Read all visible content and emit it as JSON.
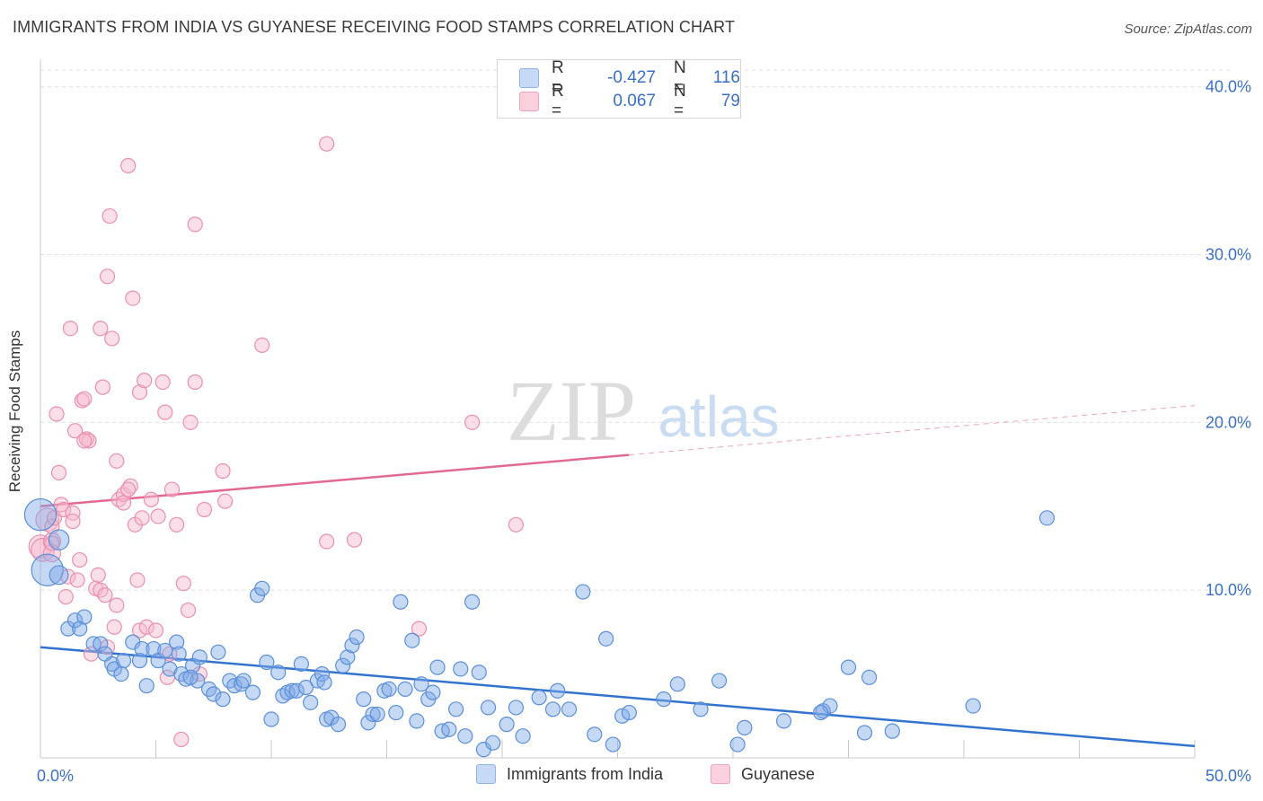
{
  "header": {
    "title": "IMMIGRANTS FROM INDIA VS GUYANESE RECEIVING FOOD STAMPS CORRELATION CHART",
    "source": "Source: ZipAtlas.com"
  },
  "watermark": {
    "zip": "ZIP",
    "atlas": "atlas"
  },
  "legend": {
    "rows": [
      {
        "r_label": "R =",
        "r_value": "-0.427",
        "n_label": "N =",
        "n_value": "116",
        "color": "#a9c7f0"
      },
      {
        "r_label": "R =",
        "r_value": "0.067",
        "n_label": "N =",
        "n_value": "79",
        "color": "#f6b7cb"
      }
    ]
  },
  "bottom_legend": [
    {
      "label": "Immigrants from India",
      "color": "#a9c7f0"
    },
    {
      "label": "Guyanese",
      "color": "#f6b7cb"
    }
  ],
  "chart_data": {
    "type": "scatter",
    "title": "IMMIGRANTS FROM INDIA VS GUYANESE RECEIVING FOOD STAMPS CORRELATION CHART",
    "xlabel": "",
    "ylabel": "Receiving Food Stamps",
    "xlim": [
      0,
      50
    ],
    "ylim": [
      0,
      41
    ],
    "x_tick_labels": [
      {
        "x": 0,
        "label": "0.0%"
      },
      {
        "x": 50,
        "label": "50.0%"
      }
    ],
    "y_ticks": [
      10,
      20,
      30,
      40
    ],
    "y_tick_labels": [
      "10.0%",
      "20.0%",
      "30.0%",
      "40.0%"
    ],
    "grid": "horizontal dashed",
    "legend_placement": "top-center",
    "series": [
      {
        "name": "Immigrants from India",
        "color": "#7fa9e6",
        "stroke": "#5b8fd8",
        "trend": {
          "x0": 0,
          "y0": 6.6,
          "x1": 50,
          "y1": 0.7,
          "color": "#3273d0",
          "solid_to": 50
        },
        "points": [
          [
            0.0,
            14.5,
            2.2
          ],
          [
            0.3,
            11.2,
            2.2
          ],
          [
            0.8,
            13.0,
            1.4
          ],
          [
            0.8,
            10.9,
            1.3
          ],
          [
            1.2,
            7.7,
            1
          ],
          [
            1.5,
            8.2,
            1
          ],
          [
            1.7,
            7.7,
            1
          ],
          [
            1.9,
            8.4,
            1
          ],
          [
            2.3,
            6.8,
            1
          ],
          [
            2.6,
            6.8,
            1
          ],
          [
            2.8,
            6.2,
            1
          ],
          [
            3.1,
            5.6,
            1
          ],
          [
            3.2,
            5.3,
            1
          ],
          [
            3.6,
            5.8,
            1
          ],
          [
            3.5,
            5.0,
            1
          ],
          [
            4.0,
            6.9,
            1
          ],
          [
            4.3,
            5.8,
            1
          ],
          [
            4.4,
            6.5,
            1
          ],
          [
            4.6,
            4.3,
            1
          ],
          [
            4.9,
            6.5,
            1
          ],
          [
            5.1,
            5.8,
            1
          ],
          [
            5.4,
            6.4,
            1
          ],
          [
            5.6,
            5.3,
            1
          ],
          [
            5.9,
            6.9,
            1
          ],
          [
            6.0,
            6.2,
            1
          ],
          [
            6.1,
            5.0,
            1
          ],
          [
            6.3,
            4.7,
            1
          ],
          [
            6.6,
            5.5,
            1
          ],
          [
            6.8,
            4.6,
            1
          ],
          [
            6.9,
            6.0,
            1
          ],
          [
            7.3,
            4.1,
            1
          ],
          [
            7.5,
            3.8,
            1
          ],
          [
            7.7,
            6.3,
            1
          ],
          [
            7.9,
            3.5,
            1
          ],
          [
            8.2,
            4.6,
            1
          ],
          [
            8.4,
            4.3,
            1
          ],
          [
            8.7,
            4.4,
            1
          ],
          [
            8.8,
            4.6,
            1
          ],
          [
            9.2,
            3.9,
            1
          ],
          [
            9.4,
            9.7,
            1
          ],
          [
            9.6,
            10.1,
            1
          ],
          [
            9.8,
            5.7,
            1
          ],
          [
            10.0,
            2.3,
            1
          ],
          [
            10.3,
            5.1,
            1
          ],
          [
            10.5,
            3.7,
            1
          ],
          [
            10.7,
            3.9,
            1
          ],
          [
            10.9,
            4.0,
            1
          ],
          [
            11.1,
            4.0,
            1
          ],
          [
            11.3,
            5.6,
            1
          ],
          [
            11.5,
            4.2,
            1
          ],
          [
            11.7,
            3.3,
            1
          ],
          [
            12.0,
            4.6,
            1
          ],
          [
            12.2,
            5.0,
            1
          ],
          [
            12.4,
            2.3,
            1
          ],
          [
            12.6,
            2.4,
            1
          ],
          [
            12.9,
            2.0,
            1
          ],
          [
            13.1,
            5.5,
            1
          ],
          [
            13.3,
            6.0,
            1
          ],
          [
            13.5,
            6.7,
            1
          ],
          [
            13.7,
            7.2,
            1
          ],
          [
            14.0,
            3.5,
            1
          ],
          [
            14.2,
            2.1,
            1
          ],
          [
            14.4,
            2.6,
            1
          ],
          [
            14.6,
            2.6,
            1
          ],
          [
            14.9,
            4.0,
            1
          ],
          [
            15.1,
            4.1,
            1
          ],
          [
            15.4,
            2.7,
            1
          ],
          [
            15.6,
            9.3,
            1
          ],
          [
            15.8,
            4.1,
            1
          ],
          [
            16.1,
            7.0,
            1
          ],
          [
            16.3,
            2.2,
            1
          ],
          [
            16.5,
            4.4,
            1
          ],
          [
            16.8,
            3.5,
            1
          ],
          [
            17.0,
            3.9,
            1
          ],
          [
            17.2,
            5.4,
            1
          ],
          [
            17.4,
            1.6,
            1
          ],
          [
            17.7,
            1.7,
            1
          ],
          [
            18.0,
            2.9,
            1
          ],
          [
            18.2,
            5.3,
            1
          ],
          [
            18.4,
            1.3,
            1
          ],
          [
            18.7,
            9.3,
            1
          ],
          [
            19.0,
            5.1,
            1
          ],
          [
            19.2,
            0.5,
            1
          ],
          [
            19.4,
            3.0,
            1
          ],
          [
            19.6,
            0.9,
            1
          ],
          [
            20.2,
            2.0,
            1
          ],
          [
            20.6,
            3.0,
            1
          ],
          [
            20.9,
            1.3,
            1
          ],
          [
            21.6,
            3.6,
            1
          ],
          [
            22.2,
            2.9,
            1
          ],
          [
            22.4,
            4.0,
            1
          ],
          [
            22.9,
            2.9,
            1
          ],
          [
            23.5,
            9.9,
            1
          ],
          [
            24.0,
            1.4,
            1
          ],
          [
            24.5,
            7.1,
            1
          ],
          [
            24.8,
            0.8,
            1
          ],
          [
            25.2,
            2.5,
            1
          ],
          [
            25.5,
            2.7,
            1
          ],
          [
            27.0,
            3.5,
            1
          ],
          [
            27.6,
            4.4,
            1
          ],
          [
            28.6,
            2.9,
            1
          ],
          [
            29.4,
            4.6,
            1
          ],
          [
            30.2,
            0.8,
            1
          ],
          [
            30.5,
            1.8,
            1
          ],
          [
            32.2,
            2.2,
            1
          ],
          [
            33.9,
            2.8,
            1
          ],
          [
            34.2,
            3.1,
            1
          ],
          [
            35.0,
            5.4,
            1
          ],
          [
            35.7,
            1.5,
            1
          ],
          [
            35.9,
            4.8,
            1
          ],
          [
            36.9,
            1.6,
            1
          ],
          [
            40.4,
            3.1,
            1
          ],
          [
            43.6,
            14.3,
            1
          ],
          [
            33.8,
            2.7,
            1
          ],
          [
            12.3,
            4.5,
            1
          ],
          [
            6.5,
            4.8,
            1
          ]
        ]
      },
      {
        "name": "Guyanese",
        "color": "#f6b7cb",
        "stroke": "#eb8fad",
        "trend": {
          "x0": 0,
          "y0": 15.0,
          "x1": 50,
          "y1": 21.0,
          "color": "#e26a92",
          "solid_to": 25.5
        },
        "points": [
          [
            0.0,
            12.6,
            1.6
          ],
          [
            0.1,
            12.4,
            1.6
          ],
          [
            0.3,
            14.2,
            1.6
          ],
          [
            0.5,
            12.9,
            1.2
          ],
          [
            0.5,
            12.2,
            1.2
          ],
          [
            0.5,
            13.8,
            1
          ],
          [
            0.6,
            14.3,
            1
          ],
          [
            0.7,
            20.5,
            1
          ],
          [
            0.8,
            17.0,
            1
          ],
          [
            0.9,
            15.1,
            1
          ],
          [
            1.0,
            14.8,
            1
          ],
          [
            1.1,
            9.6,
            1
          ],
          [
            1.2,
            10.8,
            1
          ],
          [
            1.4,
            14.6,
            1
          ],
          [
            1.4,
            14.1,
            1
          ],
          [
            1.5,
            19.5,
            1
          ],
          [
            1.6,
            10.6,
            1
          ],
          [
            1.7,
            11.8,
            1
          ],
          [
            1.8,
            21.3,
            1
          ],
          [
            1.9,
            21.4,
            1
          ],
          [
            2.0,
            19.0,
            1
          ],
          [
            2.1,
            18.9,
            1
          ],
          [
            2.2,
            6.2,
            1
          ],
          [
            2.4,
            10.1,
            1
          ],
          [
            2.5,
            10.9,
            1
          ],
          [
            2.6,
            10.0,
            1
          ],
          [
            2.6,
            25.6,
            1
          ],
          [
            2.7,
            22.1,
            1
          ],
          [
            2.8,
            9.7,
            1
          ],
          [
            2.9,
            28.7,
            1
          ],
          [
            3.0,
            32.3,
            1
          ],
          [
            3.1,
            25.0,
            1
          ],
          [
            3.2,
            7.8,
            1
          ],
          [
            3.3,
            9.1,
            1
          ],
          [
            3.3,
            17.7,
            1
          ],
          [
            3.4,
            15.4,
            1
          ],
          [
            3.6,
            15.7,
            1
          ],
          [
            3.6,
            15.2,
            1
          ],
          [
            3.8,
            35.3,
            1
          ],
          [
            3.9,
            16.2,
            1
          ],
          [
            4.0,
            27.4,
            1
          ],
          [
            4.1,
            13.9,
            1
          ],
          [
            4.2,
            10.6,
            1
          ],
          [
            4.3,
            7.6,
            1
          ],
          [
            4.3,
            21.8,
            1
          ],
          [
            4.4,
            14.3,
            1
          ],
          [
            4.5,
            22.5,
            1
          ],
          [
            4.6,
            7.8,
            1
          ],
          [
            4.8,
            15.4,
            1
          ],
          [
            5.1,
            14.4,
            1
          ],
          [
            5.3,
            22.4,
            1
          ],
          [
            5.4,
            20.6,
            1
          ],
          [
            5.5,
            4.8,
            1
          ],
          [
            5.6,
            6.2,
            1
          ],
          [
            5.7,
            16.0,
            1
          ],
          [
            5.9,
            13.9,
            1
          ],
          [
            6.1,
            1.1,
            1
          ],
          [
            6.2,
            10.4,
            1
          ],
          [
            6.4,
            8.8,
            1
          ],
          [
            6.5,
            20.0,
            1
          ],
          [
            6.7,
            22.4,
            1
          ],
          [
            6.7,
            31.8,
            1
          ],
          [
            6.9,
            5.0,
            1
          ],
          [
            7.1,
            14.8,
            1
          ],
          [
            7.9,
            17.1,
            1
          ],
          [
            8.0,
            15.3,
            1
          ],
          [
            9.6,
            24.6,
            1
          ],
          [
            12.4,
            36.6,
            1
          ],
          [
            12.4,
            12.9,
            1
          ],
          [
            13.6,
            13.0,
            1
          ],
          [
            16.4,
            7.7,
            1
          ],
          [
            18.7,
            20.0,
            1
          ],
          [
            20.6,
            13.9,
            1
          ],
          [
            2.9,
            6.6,
            1
          ],
          [
            0.5,
            12.8,
            1
          ],
          [
            1.3,
            25.6,
            1
          ],
          [
            1.9,
            18.9,
            1
          ],
          [
            3.8,
            16.0,
            1
          ],
          [
            5.0,
            7.6,
            1
          ]
        ]
      }
    ]
  }
}
